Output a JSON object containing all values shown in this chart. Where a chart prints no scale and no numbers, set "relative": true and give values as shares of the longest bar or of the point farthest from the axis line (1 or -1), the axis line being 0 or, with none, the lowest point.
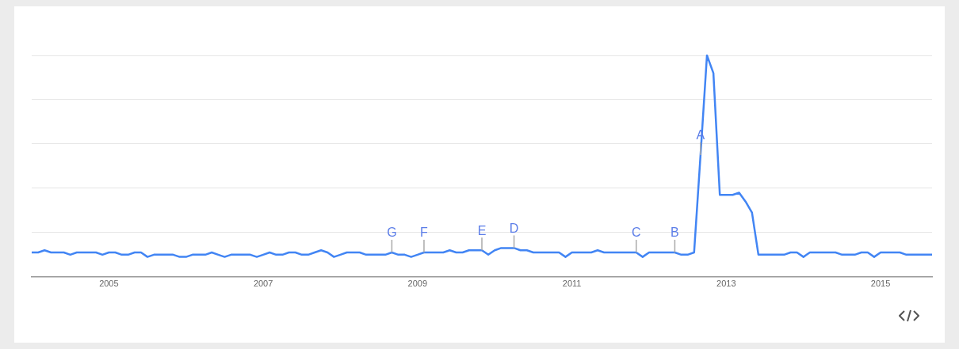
{
  "chart_data": {
    "type": "line",
    "relative": true,
    "color": "#4285f4",
    "grid": "y",
    "legend": false,
    "marker": "none",
    "xlim": [
      "2004-01",
      "2015-09"
    ],
    "xticks": [
      "2005",
      "2007",
      "2009",
      "2011",
      "2013",
      "2015"
    ],
    "annotations": [
      {
        "text": "A",
        "x": "2012-09",
        "y": 0.55
      },
      {
        "text": "B",
        "x": "2012-05",
        "y": 0.11
      },
      {
        "text": "C",
        "x": "2011-11",
        "y": 0.11
      },
      {
        "text": "D",
        "x": "2010-04",
        "y": 0.13
      },
      {
        "text": "E",
        "x": "2009-11",
        "y": 0.12
      },
      {
        "text": "F",
        "x": "2009-02",
        "y": 0.11
      },
      {
        "text": "G",
        "x": "2008-09",
        "y": 0.11
      }
    ],
    "x": [
      "2004-01",
      "2004-02",
      "2004-03",
      "2004-04",
      "2004-05",
      "2004-06",
      "2004-07",
      "2004-08",
      "2004-09",
      "2004-10",
      "2004-11",
      "2004-12",
      "2005-01",
      "2005-02",
      "2005-03",
      "2005-04",
      "2005-05",
      "2005-06",
      "2005-07",
      "2005-08",
      "2005-09",
      "2005-10",
      "2005-11",
      "2005-12",
      "2006-01",
      "2006-02",
      "2006-03",
      "2006-04",
      "2006-05",
      "2006-06",
      "2006-07",
      "2006-08",
      "2006-09",
      "2006-10",
      "2006-11",
      "2006-12",
      "2007-01",
      "2007-02",
      "2007-03",
      "2007-04",
      "2007-05",
      "2007-06",
      "2007-07",
      "2007-08",
      "2007-09",
      "2007-10",
      "2007-11",
      "2007-12",
      "2008-01",
      "2008-02",
      "2008-03",
      "2008-04",
      "2008-05",
      "2008-06",
      "2008-07",
      "2008-08",
      "2008-09",
      "2008-10",
      "2008-11",
      "2008-12",
      "2009-01",
      "2009-02",
      "2009-03",
      "2009-04",
      "2009-05",
      "2009-06",
      "2009-07",
      "2009-08",
      "2009-09",
      "2009-10",
      "2009-11",
      "2009-12",
      "2010-01",
      "2010-02",
      "2010-03",
      "2010-04",
      "2010-05",
      "2010-06",
      "2010-07",
      "2010-08",
      "2010-09",
      "2010-10",
      "2010-11",
      "2010-12",
      "2011-01",
      "2011-02",
      "2011-03",
      "2011-04",
      "2011-05",
      "2011-06",
      "2011-07",
      "2011-08",
      "2011-09",
      "2011-10",
      "2011-11",
      "2011-12",
      "2012-01",
      "2012-02",
      "2012-03",
      "2012-04",
      "2012-05",
      "2012-06",
      "2012-07",
      "2012-08",
      "2012-09",
      "2012-10",
      "2012-11",
      "2012-12",
      "2013-01",
      "2013-02",
      "2013-03",
      "2013-04",
      "2013-05",
      "2013-06",
      "2013-07",
      "2013-08",
      "2013-09",
      "2013-10",
      "2013-11",
      "2013-12",
      "2014-01",
      "2014-02",
      "2014-03",
      "2014-04",
      "2014-05",
      "2014-06",
      "2014-07",
      "2014-08",
      "2014-09",
      "2014-10",
      "2014-11",
      "2014-12",
      "2015-01",
      "2015-02",
      "2015-03",
      "2015-04",
      "2015-05",
      "2015-06",
      "2015-07",
      "2015-08",
      "2015-09"
    ],
    "values": [
      0.11,
      0.11,
      0.12,
      0.11,
      0.11,
      0.11,
      0.1,
      0.11,
      0.11,
      0.11,
      0.11,
      0.1,
      0.11,
      0.11,
      0.1,
      0.1,
      0.11,
      0.11,
      0.09,
      0.1,
      0.1,
      0.1,
      0.1,
      0.09,
      0.09,
      0.1,
      0.1,
      0.1,
      0.11,
      0.1,
      0.09,
      0.1,
      0.1,
      0.1,
      0.1,
      0.09,
      0.1,
      0.11,
      0.1,
      0.1,
      0.11,
      0.11,
      0.1,
      0.1,
      0.11,
      0.12,
      0.11,
      0.09,
      0.1,
      0.11,
      0.11,
      0.11,
      0.1,
      0.1,
      0.1,
      0.1,
      0.11,
      0.1,
      0.1,
      0.09,
      0.1,
      0.11,
      0.11,
      0.11,
      0.11,
      0.12,
      0.11,
      0.11,
      0.12,
      0.12,
      0.12,
      0.1,
      0.12,
      0.13,
      0.13,
      0.13,
      0.12,
      0.12,
      0.11,
      0.11,
      0.11,
      0.11,
      0.11,
      0.09,
      0.11,
      0.11,
      0.11,
      0.11,
      0.12,
      0.11,
      0.11,
      0.11,
      0.11,
      0.11,
      0.11,
      0.09,
      0.11,
      0.11,
      0.11,
      0.11,
      0.11,
      0.1,
      0.1,
      0.11,
      0.55,
      1,
      0.92,
      0.37,
      0.37,
      0.37,
      0.38,
      0.34,
      0.29,
      0.1,
      0.1,
      0.1,
      0.1,
      0.1,
      0.11,
      0.11,
      0.09,
      0.11,
      0.11,
      0.11,
      0.11,
      0.11,
      0.1,
      0.1,
      0.1,
      0.11,
      0.11,
      0.09,
      0.11,
      0.11,
      0.11,
      0.11,
      0.1,
      0.1,
      0.1,
      0.1,
      0.1
    ]
  }
}
